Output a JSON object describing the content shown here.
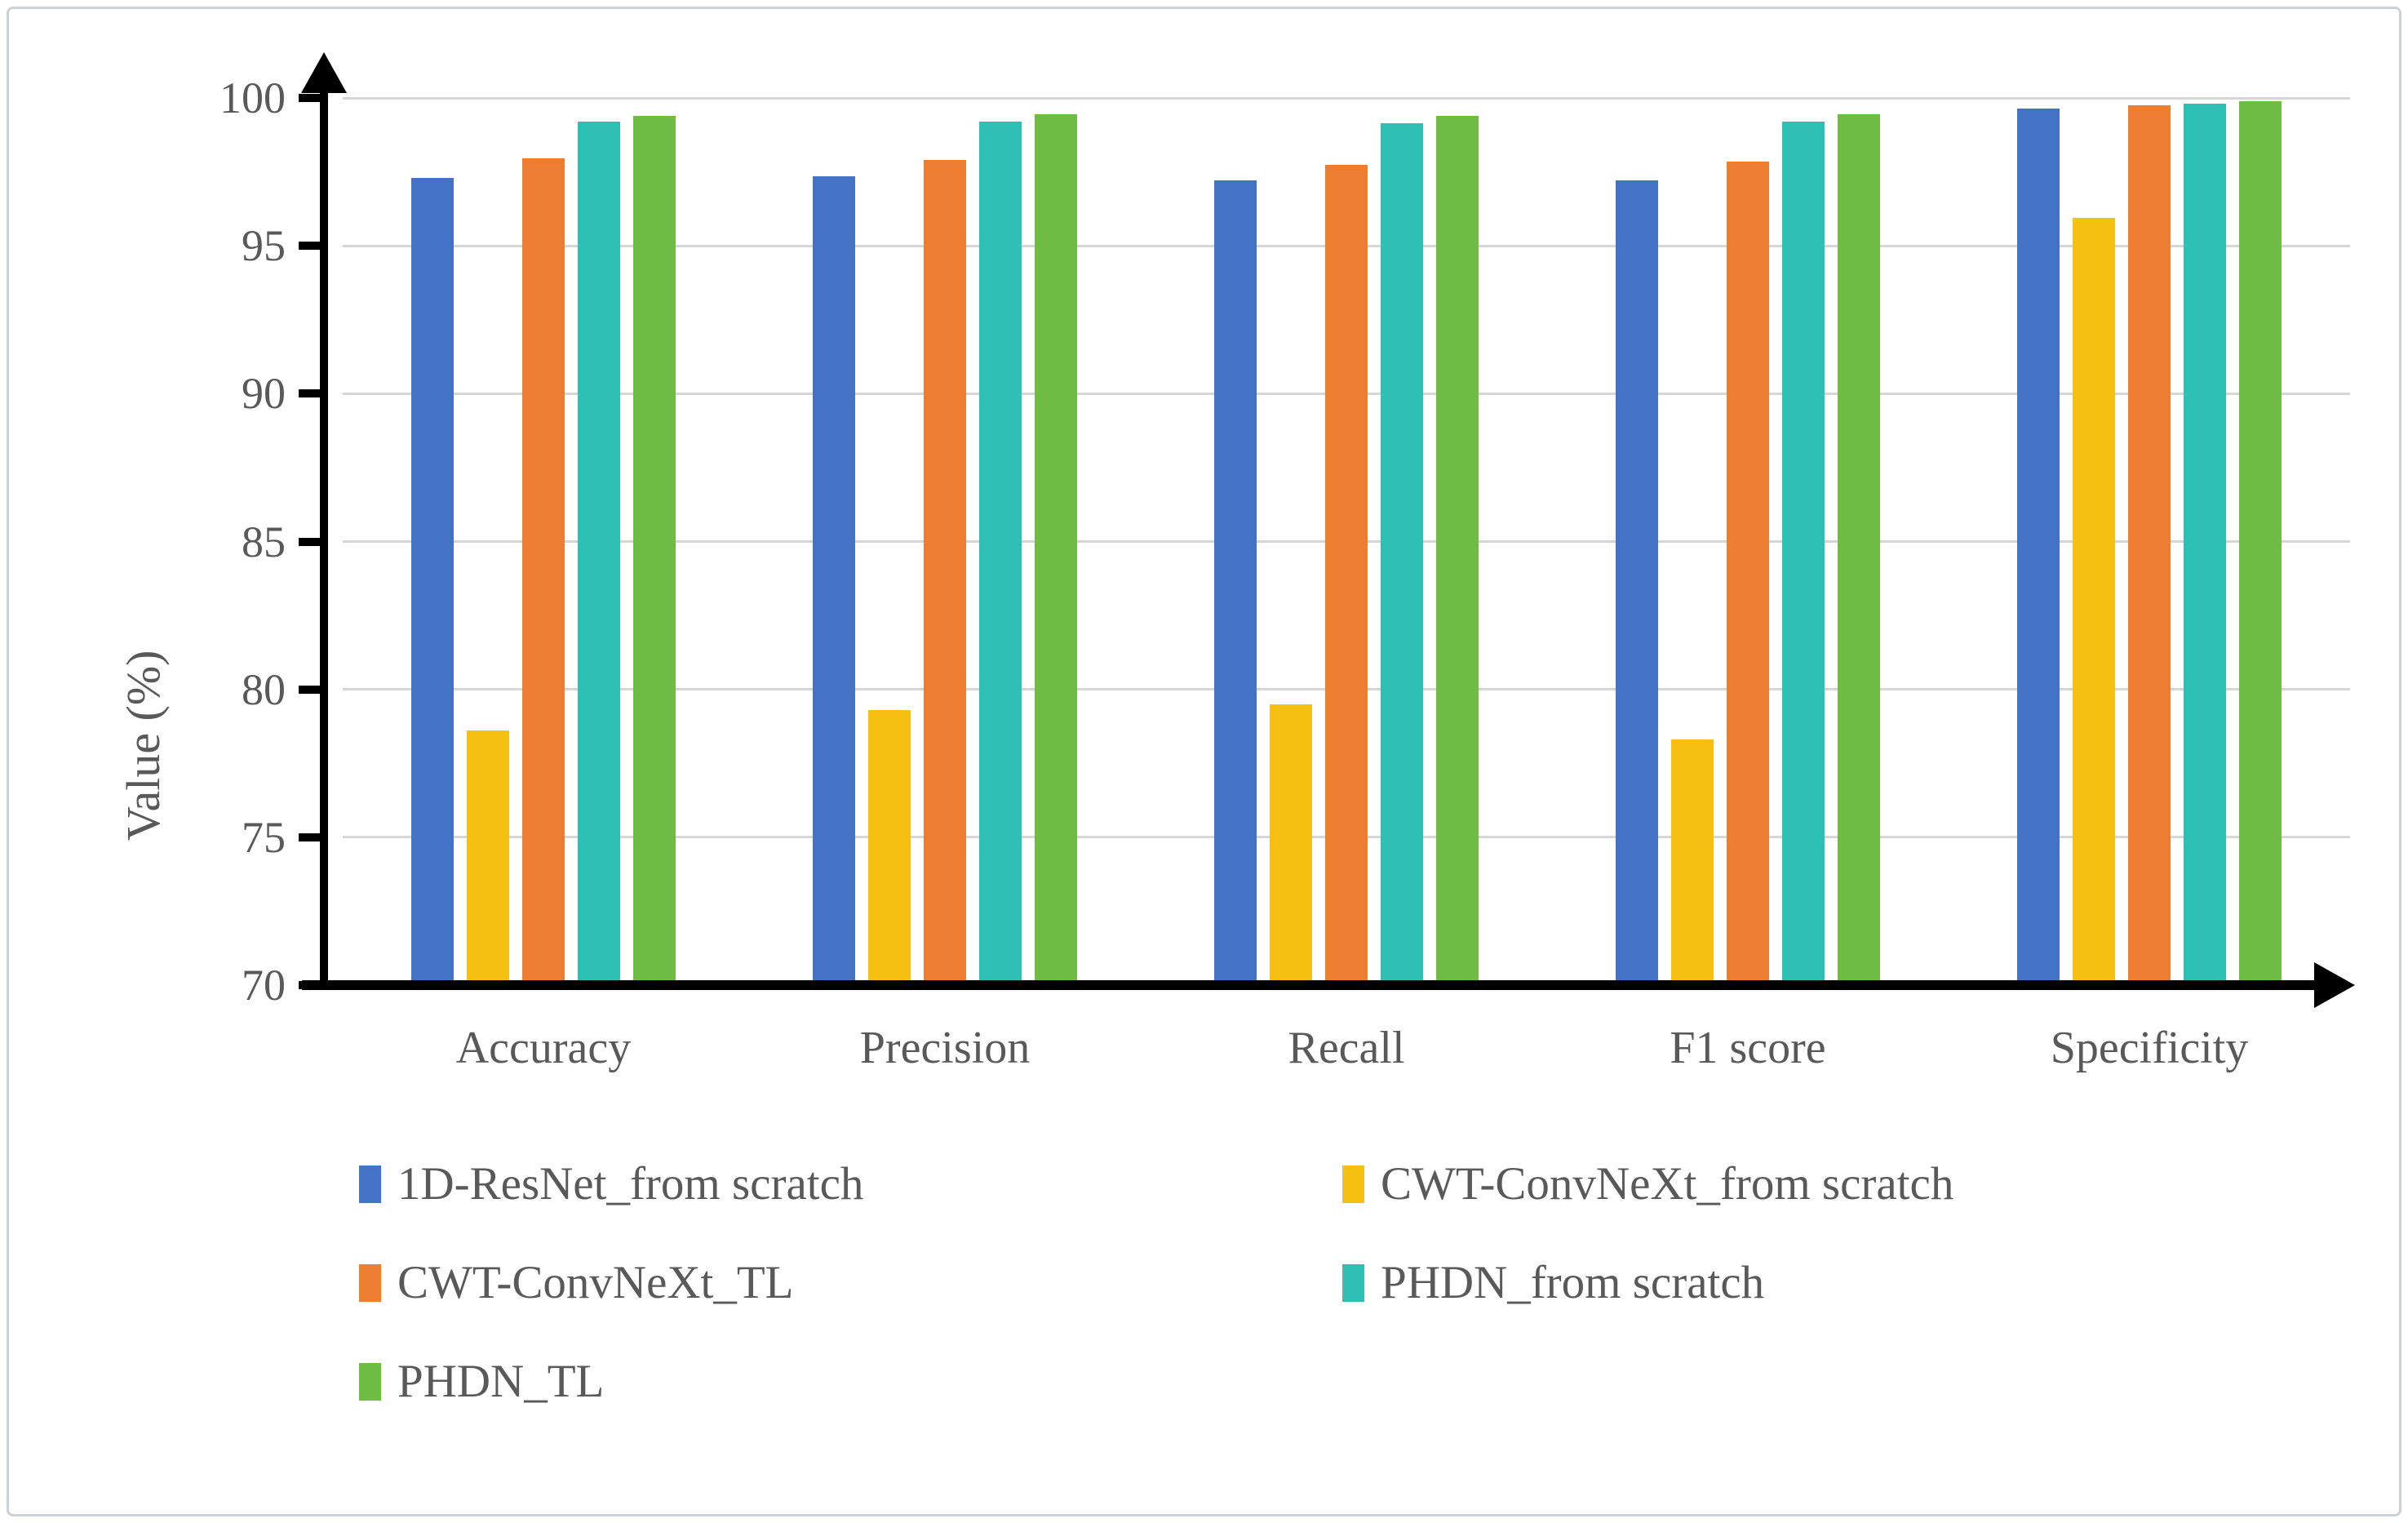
{
  "figure": {
    "background": "#ffffff",
    "border_color": "#ccd1d6",
    "text_color": "#595959",
    "axis_color": "#000000",
    "gridline_color": "#d6d6d6"
  },
  "chart_data": {
    "type": "bar",
    "title": "",
    "xlabel": "",
    "ylabel": "Value (%)",
    "ylim": [
      70,
      100
    ],
    "yticks": [
      70,
      75,
      80,
      85,
      90,
      95,
      100
    ],
    "grid": true,
    "legend_position": "bottom-left",
    "categories": [
      "Accuracy",
      "Precision",
      "Recall",
      "F1 score",
      "Specificity"
    ],
    "series": [
      {
        "name": "1D-ResNet_from scratch",
        "color": "#4472C4",
        "values": [
          97.3,
          97.35,
          97.2,
          97.2,
          99.65
        ]
      },
      {
        "name": "CWT-ConvNeXt_from scratch",
        "color": "#F5C011",
        "values": [
          78.6,
          79.3,
          79.5,
          78.3,
          95.95
        ]
      },
      {
        "name": "CWT-ConvNeXt_TL",
        "color": "#ED7D31",
        "values": [
          97.95,
          97.9,
          97.75,
          97.85,
          99.75
        ]
      },
      {
        "name": "PHDN_from scratch",
        "color": "#2FC0B5",
        "values": [
          99.2,
          99.2,
          99.15,
          99.2,
          99.8
        ]
      },
      {
        "name": "PHDN_TL",
        "color": "#6FBC45",
        "values": [
          99.4,
          99.45,
          99.4,
          99.45,
          99.9
        ]
      }
    ]
  }
}
